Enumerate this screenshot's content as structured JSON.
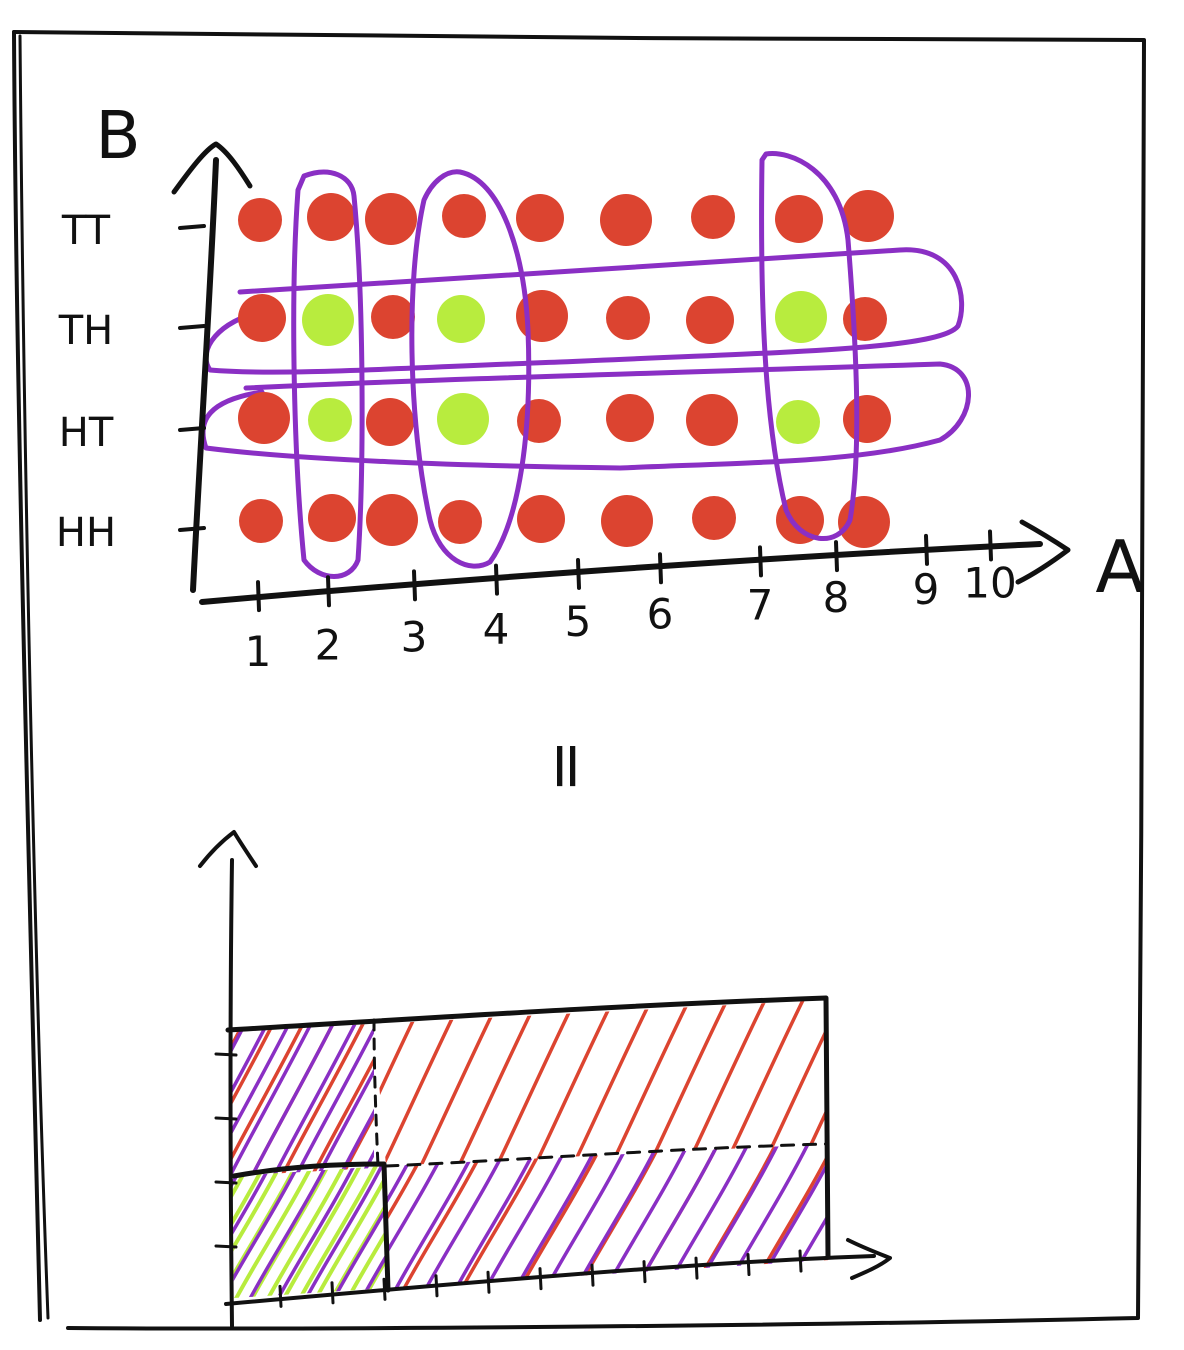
{
  "colors": {
    "ink": "#111111",
    "dot_red": "#dc4430",
    "dot_green": "#b8ec3e",
    "loop_purple": "#8a2fc4",
    "hatch_red": "#dc4430",
    "hatch_purple": "#8a2fc4",
    "hatch_green": "#b8ec3e"
  },
  "equals_sign": "=",
  "chart_data": [
    {
      "type": "scatter",
      "title": "",
      "xlabel": "A",
      "ylabel": "B",
      "x_ticks": [
        "1",
        "2",
        "3",
        "4",
        "5",
        "6",
        "7",
        "8",
        "9",
        "10"
      ],
      "y_ticks": [
        "HH",
        "HT",
        "TH",
        "TT"
      ],
      "xlim": [
        1,
        10
      ],
      "dots_per_row": 9,
      "rows": [
        {
          "b": "TT",
          "colors": [
            "red",
            "red",
            "red",
            "red",
            "red",
            "red",
            "red",
            "red",
            "red"
          ]
        },
        {
          "b": "TH",
          "colors": [
            "red",
            "green",
            "red",
            "green",
            "red",
            "red",
            "red",
            "green",
            "red"
          ]
        },
        {
          "b": "HT",
          "colors": [
            "red",
            "green",
            "red",
            "green",
            "red",
            "red",
            "red",
            "green",
            "red"
          ]
        },
        {
          "b": "HH",
          "colors": [
            "red",
            "red",
            "red",
            "red",
            "red",
            "red",
            "red",
            "red",
            "red"
          ]
        }
      ],
      "column_groups": [
        {
          "columns": [
            2
          ]
        },
        {
          "columns": [
            4
          ]
        },
        {
          "columns": [
            8
          ]
        }
      ],
      "row_groups": [
        {
          "rows": [
            "TH"
          ]
        },
        {
          "rows": [
            "HT"
          ]
        }
      ]
    },
    {
      "type": "area",
      "title": "",
      "x_tick_count": 11,
      "y_tick_count": 4,
      "regions": [
        {
          "name": "outer",
          "x_range": [
            0,
            10
          ],
          "y_range": [
            0,
            4
          ],
          "hatch": "red"
        },
        {
          "name": "bottom band",
          "x_range": [
            0,
            10
          ],
          "y_range": [
            0,
            2
          ],
          "hatch": "purple",
          "dashed_top": true
        },
        {
          "name": "left strip",
          "x_range": [
            0,
            2.6
          ],
          "y_range": [
            0,
            4
          ],
          "hatch": "purple",
          "dashed_right": true
        },
        {
          "name": "intersection",
          "x_range": [
            0,
            2.6
          ],
          "y_range": [
            0,
            2
          ],
          "hatch": "green"
        }
      ]
    }
  ]
}
